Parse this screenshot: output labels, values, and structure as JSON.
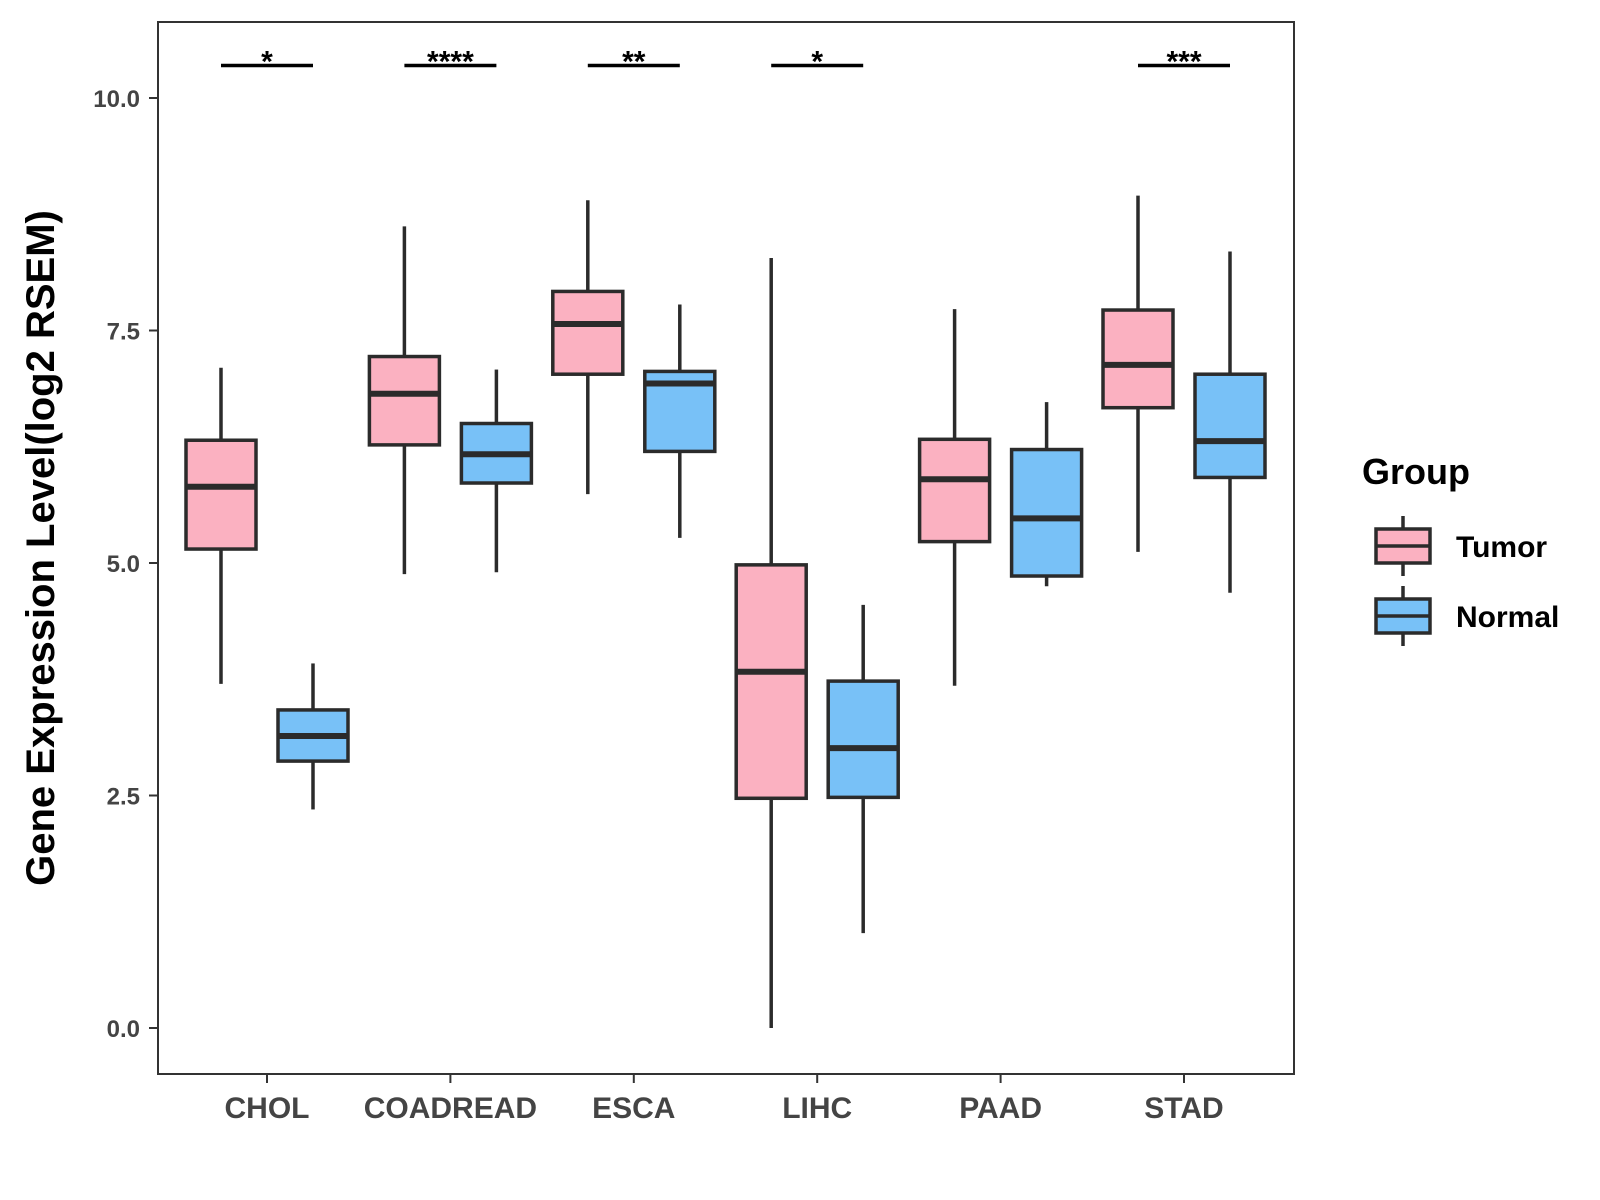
{
  "chart_data": {
    "type": "boxplot",
    "ylabel": "Gene Expression Level(log2 RSEM)",
    "xlabel": "",
    "ylim": [
      -0.5,
      10.8
    ],
    "yticks": [
      0.0,
      2.5,
      5.0,
      7.5,
      10.0
    ],
    "ytick_labels": [
      "0.0",
      "2.5",
      "5.0",
      "7.5",
      "10.0"
    ],
    "grid": false,
    "categories": [
      "CHOL",
      "COADREAD",
      "ESCA",
      "LIHC",
      "PAAD",
      "STAD"
    ],
    "legend": {
      "title": "Group",
      "placement": "right",
      "items": [
        {
          "name": "Tumor",
          "color": "#FBB1C1"
        },
        {
          "name": "Normal",
          "color": "#78C1F7"
        }
      ]
    },
    "series": [
      {
        "name": "Tumor",
        "color": "#FBB1C1",
        "boxes": [
          {
            "min": 3.7,
            "q1": 5.15,
            "median": 5.82,
            "q3": 6.32,
            "max": 7.1
          },
          {
            "min": 4.88,
            "q1": 6.27,
            "median": 6.82,
            "q3": 7.22,
            "max": 8.62
          },
          {
            "min": 5.74,
            "q1": 7.03,
            "median": 7.57,
            "q3": 7.92,
            "max": 8.9
          },
          {
            "min": 0.0,
            "q1": 2.47,
            "median": 3.83,
            "q3": 4.98,
            "max": 8.28
          },
          {
            "min": 3.68,
            "q1": 5.23,
            "median": 5.9,
            "q3": 6.33,
            "max": 7.73
          },
          {
            "min": 5.12,
            "q1": 6.67,
            "median": 7.13,
            "q3": 7.72,
            "max": 8.95
          }
        ]
      },
      {
        "name": "Normal",
        "color": "#78C1F7",
        "boxes": [
          {
            "min": 2.35,
            "q1": 2.87,
            "median": 3.14,
            "q3": 3.42,
            "max": 3.92
          },
          {
            "min": 4.9,
            "q1": 5.86,
            "median": 6.17,
            "q3": 6.5,
            "max": 7.08
          },
          {
            "min": 5.27,
            "q1": 6.2,
            "median": 6.93,
            "q3": 7.06,
            "max": 7.78
          },
          {
            "min": 1.02,
            "q1": 2.48,
            "median": 3.01,
            "q3": 3.73,
            "max": 4.55
          },
          {
            "min": 4.75,
            "q1": 4.86,
            "median": 5.48,
            "q3": 6.22,
            "max": 6.73
          },
          {
            "min": 4.68,
            "q1": 5.92,
            "median": 6.31,
            "q3": 7.03,
            "max": 8.35
          }
        ]
      }
    ],
    "significance": [
      {
        "category": "CHOL",
        "label": "*"
      },
      {
        "category": "COADREAD",
        "label": "****"
      },
      {
        "category": "ESCA",
        "label": "**"
      },
      {
        "category": "LIHC",
        "label": "*"
      },
      {
        "category": "STAD",
        "label": "***"
      }
    ],
    "significance_y": 10.35
  }
}
